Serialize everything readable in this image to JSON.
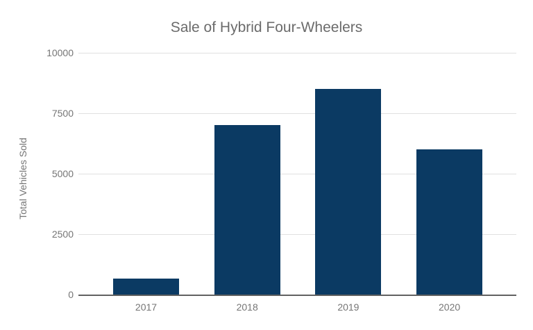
{
  "chart_data": {
    "type": "bar",
    "title": "Sale of Hybrid Four-Wheelers",
    "xlabel": "",
    "ylabel": "Total Vehicles Sold",
    "categories": [
      "2017",
      "2018",
      "2019",
      "2020"
    ],
    "values": [
      650,
      7000,
      8500,
      6000
    ],
    "ylim": [
      0,
      10000
    ],
    "yticks": [
      0,
      2500,
      5000,
      7500,
      10000
    ],
    "grid": true,
    "legend": "none"
  },
  "colors": {
    "bar": "#0b3a63",
    "gridline": "#e0e0e0",
    "axis_line": "#616161",
    "tick_label": "#757575",
    "title_text": "#6b6b6b",
    "background": "#ffffff"
  }
}
